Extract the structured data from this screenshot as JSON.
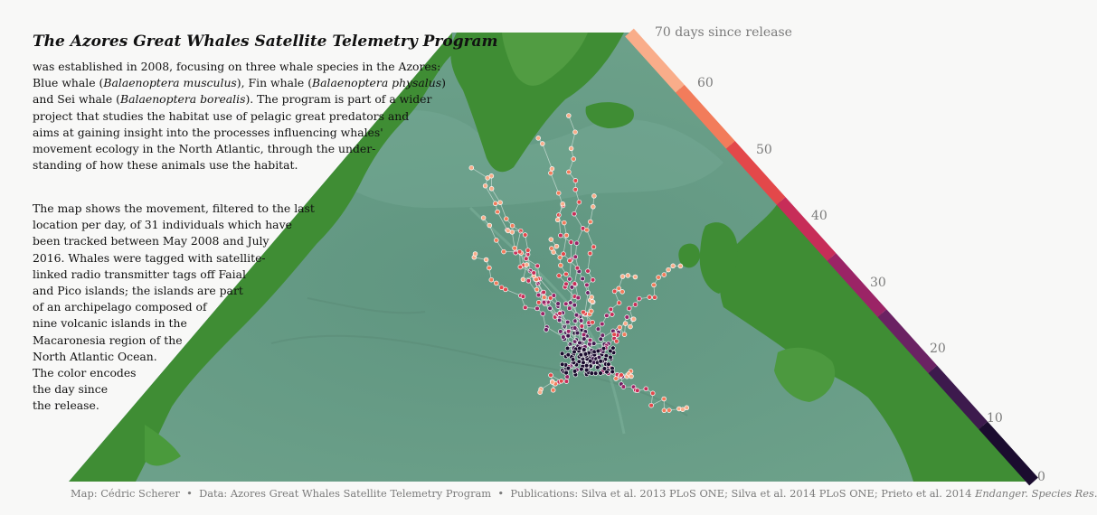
{
  "title": "The Azores Great Whales Satellite Telemetry Program",
  "intro_lines": [
    "was established in 2008, focusing on three whale species in the Azores:",
    "Blue whale (Balaenoptera musculus), Fin whale (Balaenoptera physalus)",
    "and Sei whale (Balaenoptera borealis). The program is part of a wider",
    "project that studies the habitat use of pelagic great predators and",
    "aims at gaining insight into the processes influencing whales'",
    "movement ecology in the North Atlantic, through the under-",
    "standing of how these animals use the habitat."
  ],
  "map_lines": [
    "The map shows the movement, filtered to the last",
    "location per day, of 31 individuals which have",
    "been tracked between May 2008 and July",
    "2016. Whales were tagged with satellite-",
    "linked radio transmitter tags off Faial",
    "and Pico islands; the islands are part",
    "of an archipelago composed of",
    "nine  volcanic islands in the",
    "Macaronesia region of the",
    "North Atlantic Ocean.",
    "The color encodes",
    "the day since",
    "the release."
  ],
  "legend": {
    "top_label": "70 days since release",
    "ticks": [
      "60",
      "50",
      "40",
      "30",
      "20",
      "10",
      "0"
    ],
    "colors": [
      "#1b0c2f",
      "#3d1a4d",
      "#6b2263",
      "#9b2466",
      "#c72d58",
      "#e3484a",
      "#f27c5b",
      "#f9ad8a"
    ]
  },
  "caption": "Map: Cédric Scherer  •  Data: Azores Great Whales Satellite Telemetry Program  •  Publications: Silva et al. 2013 PLoS ONE; Silva et al. 2014 PLoS ONE; Prieto et al. 2014 Endanger. Species Res.",
  "colors": {
    "ocean": "#6a9c86",
    "land": "#3f8d34",
    "background": "#f8f8f7"
  }
}
